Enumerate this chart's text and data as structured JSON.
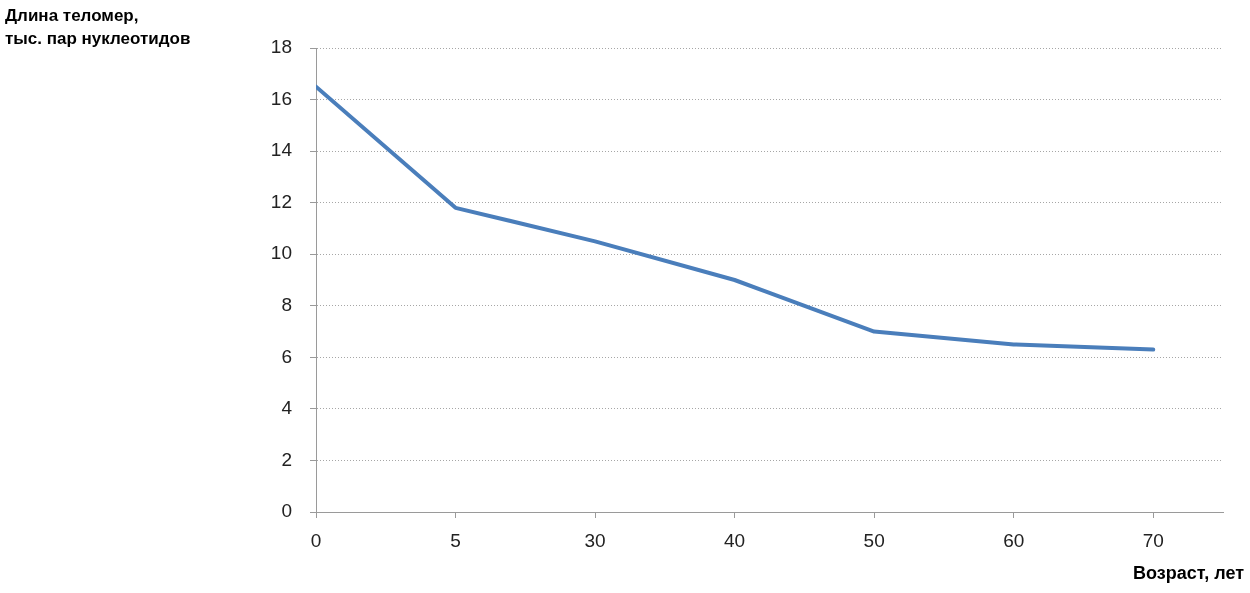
{
  "chart_data": {
    "type": "line",
    "xlabel": "Возраст, лет",
    "ylabel": "Длина теломер,\nтыс. пар нуклеотидов",
    "categories": [
      "0",
      "5",
      "30",
      "40",
      "50",
      "60",
      "70"
    ],
    "series": [
      {
        "color": "#4a7ebb",
        "values": [
          16.5,
          11.8,
          10.5,
          9,
          7,
          6.5,
          6.3
        ]
      }
    ],
    "ylim": [
      0,
      18
    ],
    "yticks": [
      0,
      2,
      4,
      6,
      8,
      10,
      12,
      14,
      16,
      18
    ],
    "grid": "y",
    "marker": "none",
    "line_style": "solid"
  }
}
